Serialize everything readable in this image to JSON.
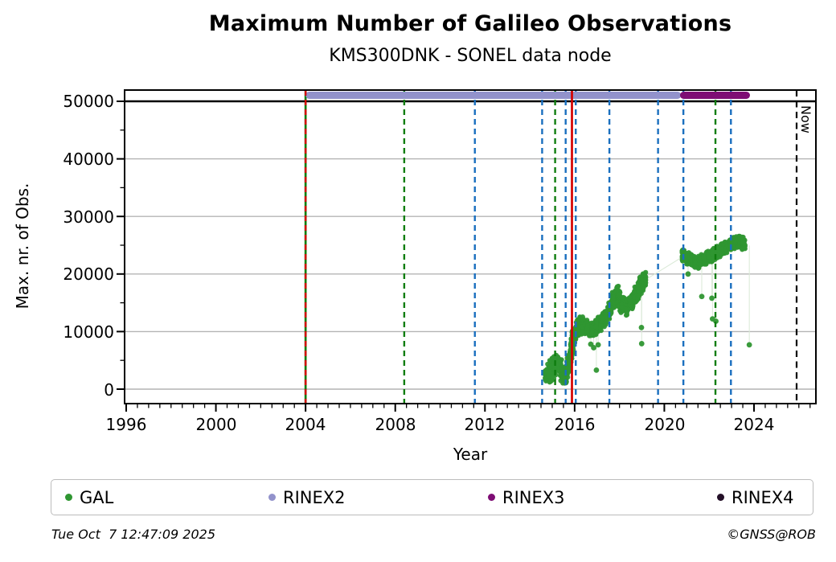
{
  "title": "Maximum Number of Galileo Observations",
  "subtitle": "KMS300DNK - SONEL data node",
  "footer": {
    "timestamp": "Tue Oct  7 12:47:09 2025",
    "credit": "©GNSS@ROB"
  },
  "legend": [
    {
      "label": "GAL",
      "color": "#2f9632"
    },
    {
      "label": "RINEX2",
      "color": "#9292cb"
    },
    {
      "label": "RINEX3",
      "color": "#7e0d74"
    },
    {
      "label": "RINEX4",
      "color": "#241028"
    }
  ],
  "chart_data": {
    "type": "scatter",
    "title": "Maximum Number of Galileo Observations",
    "subtitle": "KMS300DNK - SONEL data node",
    "xlabel": "Year",
    "ylabel": "Max. nr. of Obs.",
    "xlim": [
      1995.93,
      2026.75
    ],
    "ylim": [
      -2500,
      52000
    ],
    "xticks": [
      1996,
      2000,
      2004,
      2008,
      2012,
      2016,
      2020,
      2024
    ],
    "xticklabels": [
      "1996",
      "2000",
      "2004",
      "2008",
      "2012",
      "2016",
      "2020",
      "2024"
    ],
    "yticks": [
      0,
      10000,
      20000,
      30000,
      40000,
      50000
    ],
    "yticklabels": [
      "0",
      "10000",
      "20000",
      "30000",
      "40000",
      "50000"
    ],
    "grid": "horizontal",
    "grid_color": "#b4b4b4",
    "max_obs_line": {
      "value": 50000,
      "color": "#000000"
    },
    "now_marker": {
      "year": 2025.9,
      "label": "Now",
      "color": "#000000",
      "style": "dashed"
    },
    "coverage_bars": [
      {
        "name": "RINEX2",
        "start": 2004.0,
        "end": 2020.75,
        "value": 51000,
        "color": "#9292cb"
      },
      {
        "name": "RINEX3",
        "start": 2020.7,
        "end": 2023.82,
        "value": 51000,
        "color": "#7e0d74"
      }
    ],
    "event_lines": [
      {
        "year": 2004.0,
        "color": "#0f7d0f",
        "style": "solid",
        "layer": "back"
      },
      {
        "year": 2004.0,
        "color": "#d40000",
        "style": "dashed",
        "layer": "front"
      },
      {
        "year": 2008.4,
        "color": "#0f7d0f",
        "style": "dashed",
        "layer": "back"
      },
      {
        "year": 2011.55,
        "color": "#1a6fbf",
        "style": "dashed",
        "layer": "back"
      },
      {
        "year": 2014.55,
        "color": "#1a6fbf",
        "style": "dashed",
        "layer": "back"
      },
      {
        "year": 2015.13,
        "color": "#0f7d0f",
        "style": "dashed",
        "layer": "back"
      },
      {
        "year": 2015.6,
        "color": "#1a6fbf",
        "style": "dashed",
        "layer": "back"
      },
      {
        "year": 2015.88,
        "color": "#d40000",
        "style": "solid",
        "layer": "front"
      },
      {
        "year": 2016.05,
        "color": "#1a6fbf",
        "style": "dashed",
        "layer": "back"
      },
      {
        "year": 2017.55,
        "color": "#1a6fbf",
        "style": "dashed",
        "layer": "back"
      },
      {
        "year": 2019.72,
        "color": "#1a6fbf",
        "style": "dashed",
        "layer": "back"
      },
      {
        "year": 2020.85,
        "color": "#1a6fbf",
        "style": "dashed",
        "layer": "back"
      },
      {
        "year": 2022.28,
        "color": "#0f7d0f",
        "style": "dashed",
        "layer": "back"
      },
      {
        "year": 2022.97,
        "color": "#1a6fbf",
        "style": "dashed",
        "layer": "back"
      }
    ],
    "series": [
      {
        "name": "GAL",
        "color": "#2f9632",
        "band": [
          [
            2014.68,
            1200,
            3500
          ],
          [
            2014.85,
            700,
            5000
          ],
          [
            2015.05,
            1500,
            6000
          ],
          [
            2015.25,
            2500,
            6500
          ],
          [
            2015.42,
            1000,
            5200
          ],
          [
            2015.55,
            300,
            3200
          ],
          [
            2015.7,
            1200,
            6500
          ],
          [
            2015.85,
            3500,
            9800
          ],
          [
            2016.0,
            7000,
            11500
          ],
          [
            2016.15,
            9200,
            12600
          ],
          [
            2016.35,
            9400,
            13000
          ],
          [
            2016.55,
            9000,
            12400
          ],
          [
            2016.75,
            8800,
            11900
          ],
          [
            2016.95,
            9300,
            12300
          ],
          [
            2017.15,
            9800,
            12800
          ],
          [
            2017.35,
            10800,
            14000
          ],
          [
            2017.55,
            12000,
            15400
          ],
          [
            2017.7,
            13400,
            17300
          ],
          [
            2017.9,
            14000,
            18400
          ],
          [
            2018.1,
            13000,
            16500
          ],
          [
            2018.28,
            12400,
            15800
          ],
          [
            2018.45,
            13000,
            16400
          ],
          [
            2018.62,
            14000,
            17400
          ],
          [
            2018.8,
            15000,
            18900
          ],
          [
            2019.0,
            16500,
            20300
          ],
          [
            2019.18,
            17600,
            20500
          ],
          [
            2020.78,
            21400,
            24400
          ],
          [
            2020.95,
            21700,
            24200
          ],
          [
            2021.15,
            21300,
            23800
          ],
          [
            2021.35,
            20900,
            23400
          ],
          [
            2021.55,
            20800,
            23200
          ],
          [
            2021.75,
            21400,
            23700
          ],
          [
            2021.95,
            21800,
            24000
          ],
          [
            2022.15,
            22000,
            24400
          ],
          [
            2022.35,
            22400,
            24900
          ],
          [
            2022.55,
            23000,
            25400
          ],
          [
            2022.75,
            23500,
            25900
          ],
          [
            2022.95,
            24000,
            26400
          ],
          [
            2023.15,
            24300,
            26900
          ],
          [
            2023.35,
            24500,
            27000
          ],
          [
            2023.5,
            24100,
            26600
          ],
          [
            2023.6,
            23800,
            26100
          ]
        ],
        "outliers": [
          [
            2016.72,
            7800
          ],
          [
            2016.85,
            7200
          ],
          [
            2016.97,
            3300
          ],
          [
            2017.05,
            7700
          ],
          [
            2018.98,
            10700
          ],
          [
            2018.99,
            7900
          ],
          [
            2021.06,
            20000
          ],
          [
            2021.67,
            16100
          ],
          [
            2022.12,
            15800
          ],
          [
            2022.15,
            12200
          ],
          [
            2022.3,
            11800
          ],
          [
            2023.79,
            7700
          ]
        ]
      }
    ]
  }
}
